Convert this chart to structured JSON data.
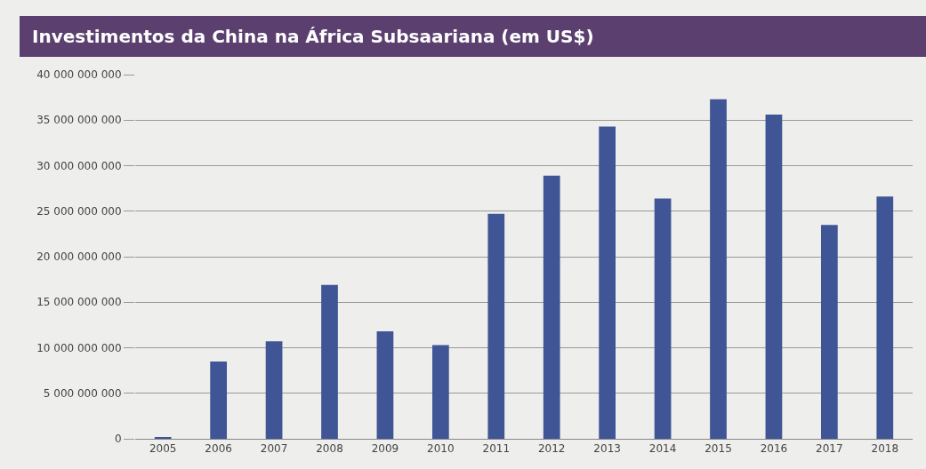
{
  "chart_data": {
    "type": "bar",
    "title": "Investimentos da China na África Subsaariana (em US$)",
    "categories": [
      "2005",
      "2006",
      "2007",
      "2008",
      "2009",
      "2010",
      "2011",
      "2012",
      "2013",
      "2014",
      "2015",
      "2016",
      "2017",
      "2018"
    ],
    "values": [
      100000000,
      8500000000,
      10700000000,
      16900000000,
      11800000000,
      10300000000,
      24700000000,
      28900000000,
      34300000000,
      26400000000,
      37300000000,
      35600000000,
      23500000000,
      26600000000
    ],
    "color": "#3f5596",
    "ylim": [
      0,
      40000000000
    ],
    "yticks": [
      {
        "value": 0,
        "label": "0"
      },
      {
        "value": 5000000000,
        "label": "5 000 000 000"
      },
      {
        "value": 10000000000,
        "label": "10 000 000 000"
      },
      {
        "value": 15000000000,
        "label": "15 000 000 000"
      },
      {
        "value": 20000000000,
        "label": "20 000 000 000"
      },
      {
        "value": 25000000000,
        "label": "25 000 000 000"
      },
      {
        "value": 30000000000,
        "label": "30 000 000 000"
      },
      {
        "value": 35000000000,
        "label": "35 000 000 000"
      },
      {
        "value": 40000000000,
        "label": "40 000 000 000"
      }
    ],
    "grid": "y"
  }
}
